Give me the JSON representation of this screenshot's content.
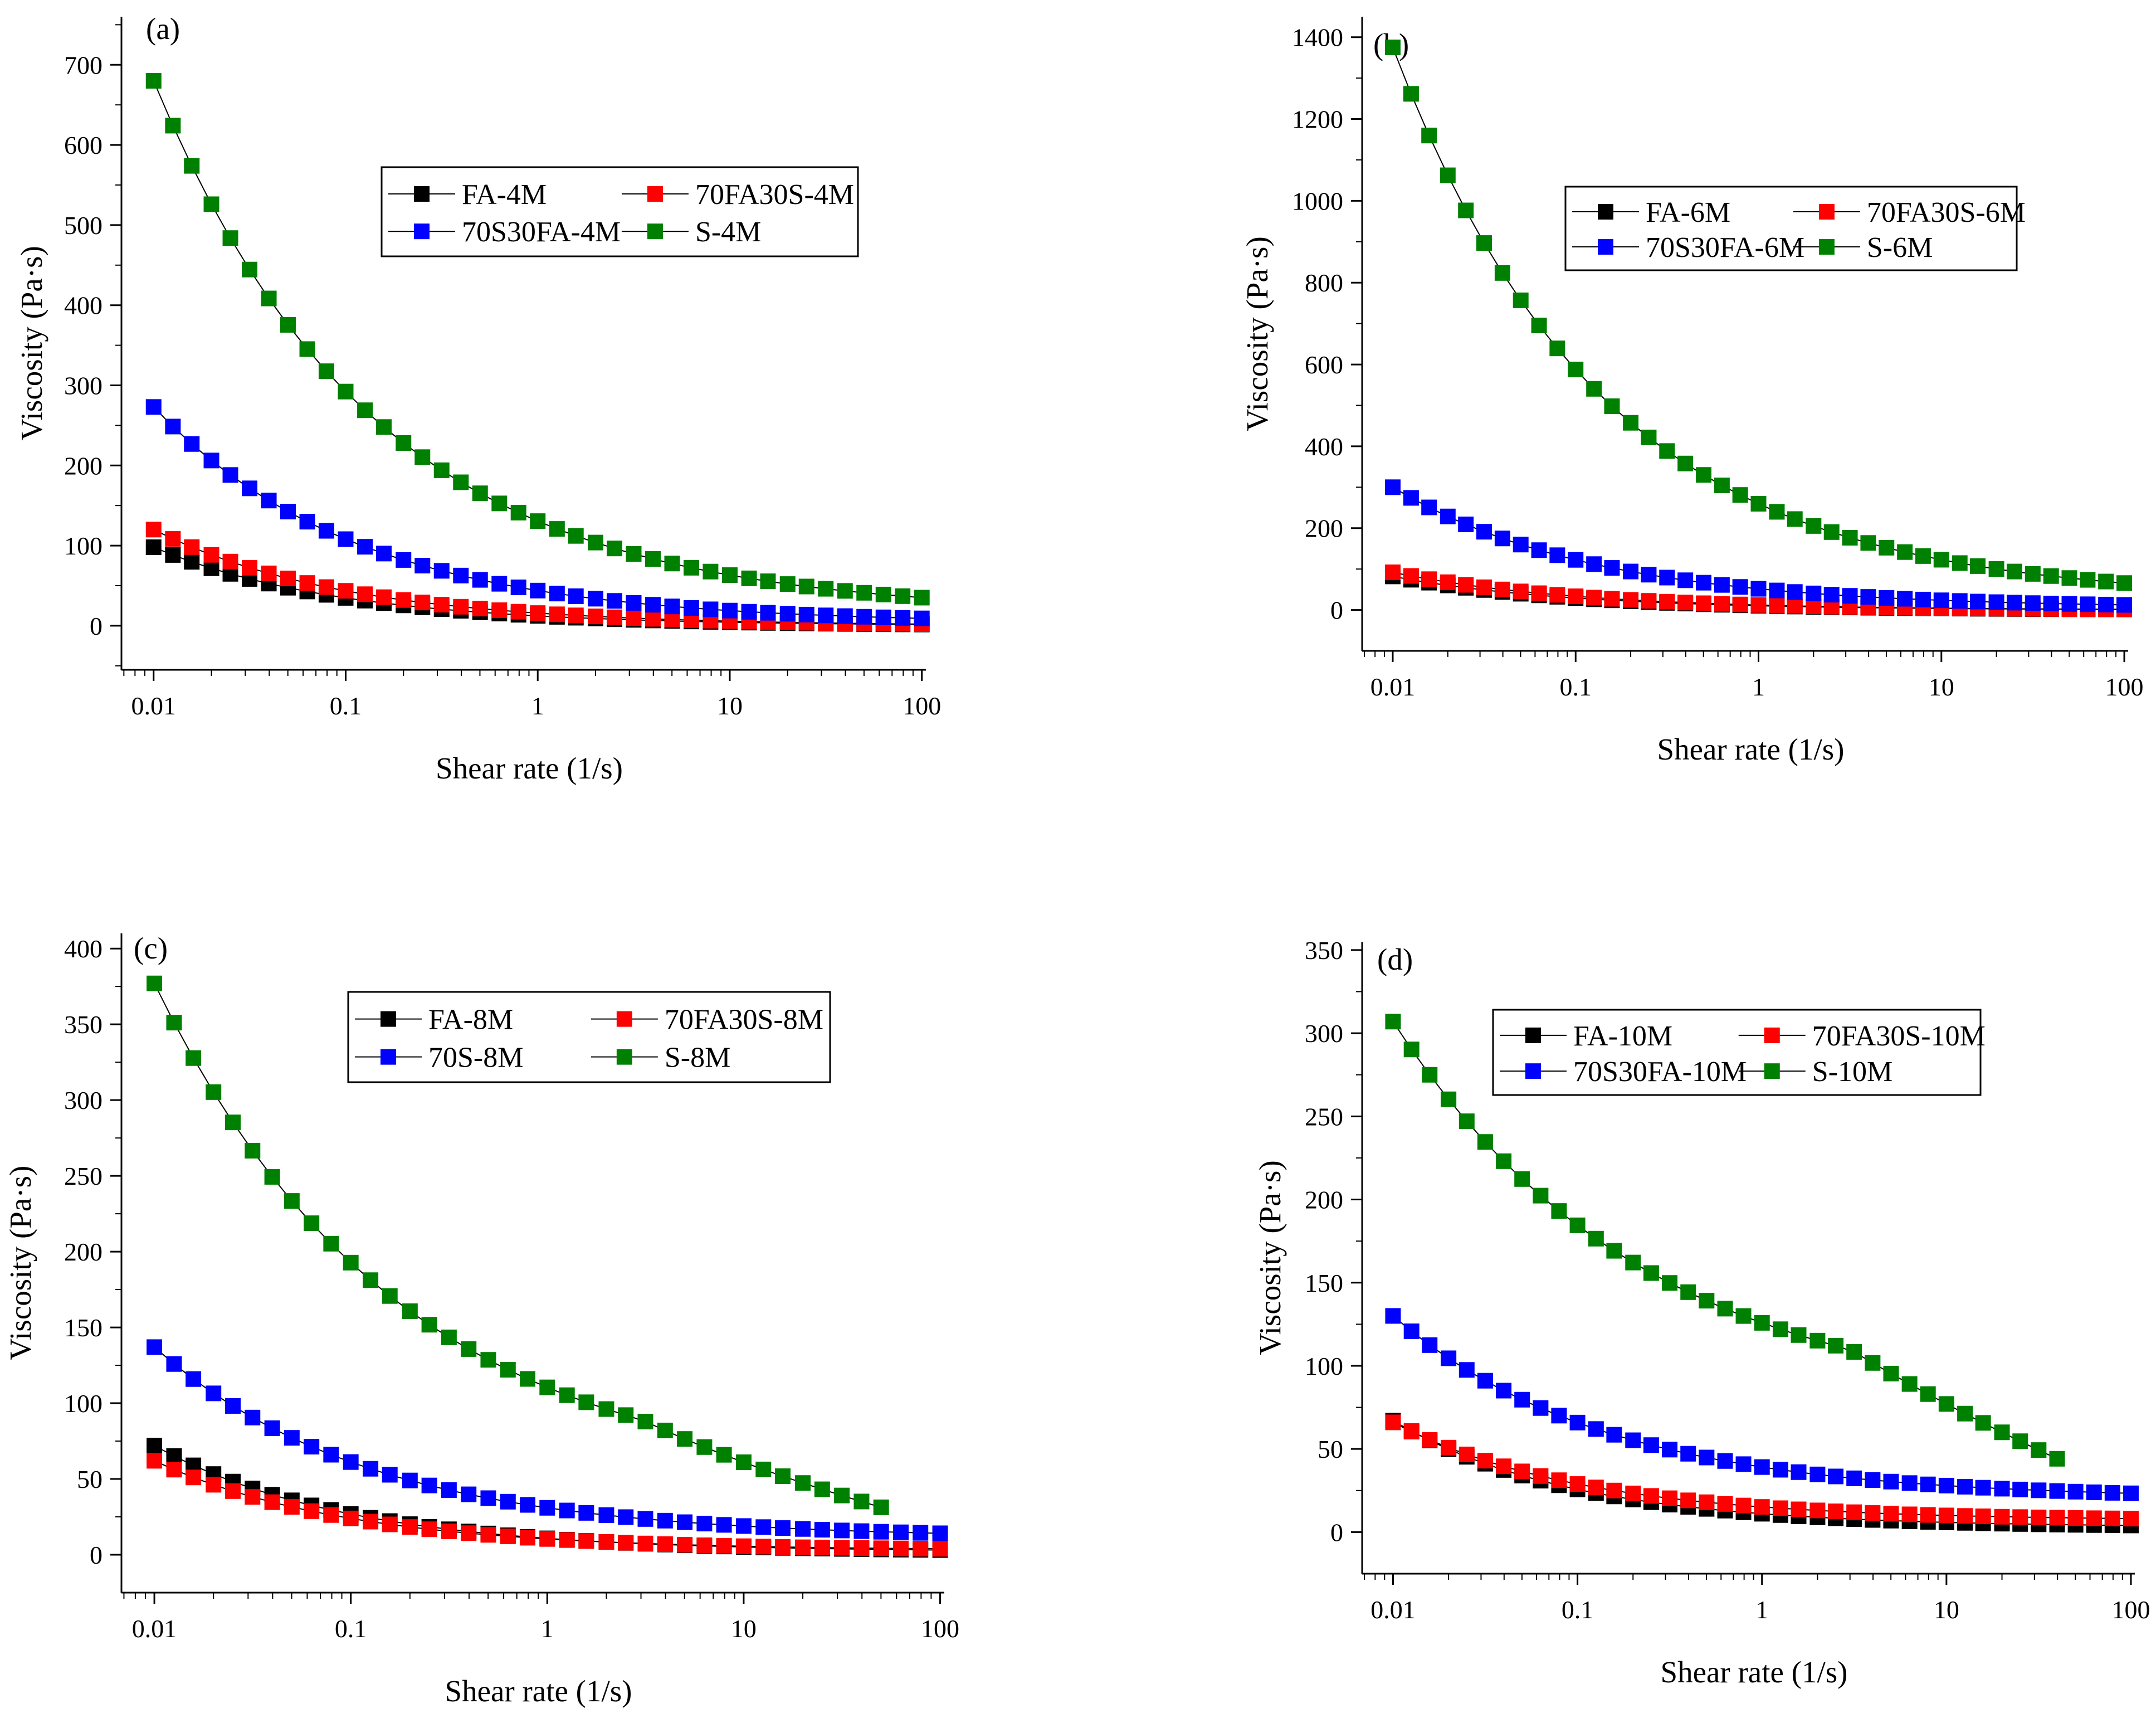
{
  "colors": {
    "black": "#000000",
    "red": "#ff0000",
    "blue": "#0000ff",
    "green": "#008000"
  },
  "chart_data": [
    {
      "panel": "(a)",
      "type": "scatter",
      "xscale": "log",
      "xlabel": "Shear rate (1/s)",
      "ylabel": "Viscosity (Pa·s)",
      "xlim": [
        0.0068,
        105
      ],
      "ylim": [
        -55,
        760
      ],
      "xticks": [
        0.01,
        0.1,
        1,
        10,
        100
      ],
      "xtick_labels": [
        "0.01",
        "0.1",
        "1",
        "10",
        "100"
      ],
      "yticks": [
        0,
        100,
        200,
        300,
        400,
        500,
        600,
        700
      ],
      "ytick_labels": [
        "0",
        "100",
        "200",
        "300",
        "400",
        "500",
        "600",
        "700"
      ],
      "legend_position": "top-center",
      "x": [
        0.01,
        0.0126,
        0.0158,
        0.02,
        0.0251,
        0.0316,
        0.0398,
        0.0501,
        0.0631,
        0.0794,
        0.1,
        0.126,
        0.158,
        0.2,
        0.251,
        0.316,
        0.398,
        0.501,
        0.631,
        0.794,
        1,
        1.26,
        1.58,
        2,
        2.51,
        3.16,
        3.98,
        5.01,
        6.31,
        7.94,
        10,
        12.6,
        15.8,
        20,
        25.1,
        31.6,
        39.8,
        50.1,
        63.1,
        79.4,
        100
      ],
      "series": [
        {
          "name": "FA-4M",
          "color": "#000000",
          "y0": 98,
          "tau": 0.45,
          "yinf": 0
        },
        {
          "name": "70FA30S-4M",
          "color": "#ff0000",
          "y0": 120,
          "tau": 0.44,
          "yinf": 0
        },
        {
          "name": "70S30FA-4M",
          "color": "#0000ff",
          "y0": 273,
          "tau": 0.41,
          "yinf": 3
        },
        {
          "name": "S-4M",
          "color": "#008000",
          "y0": 680,
          "tau": 0.38,
          "yinf": 15
        }
      ]
    },
    {
      "panel": "(b)",
      "type": "scatter",
      "xscale": "log",
      "xlabel": "Shear rate (1/s)",
      "ylabel": "Viscosity (Pa·s)",
      "xlim": [
        0.0068,
        105
      ],
      "ylim": [
        -100,
        1450
      ],
      "xticks": [
        0.01,
        0.1,
        1,
        10,
        100
      ],
      "xtick_labels": [
        "0.01",
        "0.1",
        "1",
        "10",
        "100"
      ],
      "yticks": [
        0,
        200,
        400,
        600,
        800,
        1000,
        1200,
        1400
      ],
      "ytick_labels": [
        "0",
        "200",
        "400",
        "600",
        "800",
        "1000",
        "1200",
        "1400"
      ],
      "legend_position": "top-right",
      "x": [
        0.01,
        0.0126,
        0.0158,
        0.02,
        0.0251,
        0.0316,
        0.0398,
        0.0501,
        0.0631,
        0.0794,
        0.1,
        0.126,
        0.158,
        0.2,
        0.251,
        0.316,
        0.398,
        0.501,
        0.631,
        0.794,
        1,
        1.26,
        1.58,
        2,
        2.51,
        3.16,
        3.98,
        5.01,
        6.31,
        7.94,
        10,
        12.6,
        15.8,
        20,
        25.1,
        31.6,
        39.8,
        50.1,
        63.1,
        79.4,
        100
      ],
      "series": [
        {
          "name": "FA-6M",
          "color": "#000000",
          "y0": 82,
          "tau": 0.45,
          "yinf": 0
        },
        {
          "name": "70FA30S-6M",
          "color": "#ff0000",
          "y0": 92,
          "tau": 0.44,
          "yinf": 0
        },
        {
          "name": "70S30FA-6M",
          "color": "#0000ff",
          "y0": 300,
          "tau": 0.4,
          "yinf": 5
        },
        {
          "name": "S-6M",
          "color": "#008000",
          "y0": 1375,
          "tau": 0.38,
          "yinf": 25
        }
      ]
    },
    {
      "panel": "(c)",
      "type": "scatter",
      "xscale": "log",
      "xlabel": "Shear rate (1/s)",
      "ylabel": "Viscosity (Pa·s)",
      "xlim": [
        0.0068,
        105
      ],
      "ylim": [
        -25,
        410
      ],
      "xticks": [
        0.01,
        0.1,
        1,
        10,
        100
      ],
      "xtick_labels": [
        "0.01",
        "0.1",
        "1",
        "10",
        "100"
      ],
      "yticks": [
        0,
        50,
        100,
        150,
        200,
        250,
        300,
        350,
        400
      ],
      "ytick_labels": [
        "0",
        "50",
        "100",
        "150",
        "200",
        "250",
        "300",
        "350",
        "400"
      ],
      "legend_position": "top-center",
      "x": [
        0.01,
        0.0126,
        0.0158,
        0.02,
        0.0251,
        0.0316,
        0.0398,
        0.0501,
        0.0631,
        0.0794,
        0.1,
        0.126,
        0.158,
        0.2,
        0.251,
        0.316,
        0.398,
        0.501,
        0.631,
        0.794,
        1,
        1.26,
        1.58,
        2,
        2.51,
        3.16,
        3.98,
        5.01,
        6.31,
        7.94,
        10,
        12.6,
        15.8,
        20,
        25.1,
        31.6,
        39.8,
        50.1,
        63.1,
        79.4,
        100
      ],
      "series": [
        {
          "name": "FA-8M",
          "color": "#000000",
          "y0": 72,
          "tau": 0.45,
          "yinf": 2,
          "xmax": 100
        },
        {
          "name": "70FA30S-8M",
          "color": "#ff0000",
          "y0": 62,
          "tau": 0.45,
          "yinf": 3,
          "xmax": 100
        },
        {
          "name": "70S-8M",
          "color": "#0000ff",
          "y0": 137,
          "tau": 0.4,
          "yinf": 11,
          "xmax": 100
        },
        {
          "name": "S-8M",
          "color": "#008000",
          "y0": 377,
          "tau": 0.35,
          "yinf": 44,
          "xmax": 56,
          "tail": true
        }
      ]
    },
    {
      "panel": "(d)",
      "type": "scatter",
      "xscale": "log",
      "xlabel": "Shear rate (1/s)",
      "ylabel": "Viscosity (Pa·s)",
      "xlim": [
        0.0068,
        105
      ],
      "ylim": [
        -25,
        355
      ],
      "xticks": [
        0.01,
        0.1,
        1,
        10,
        100
      ],
      "xtick_labels": [
        "0.01",
        "0.1",
        "1",
        "10",
        "100"
      ],
      "yticks": [
        0,
        50,
        100,
        150,
        200,
        250,
        300,
        350
      ],
      "ytick_labels": [
        "0",
        "50",
        "100",
        "150",
        "200",
        "250",
        "300",
        "350"
      ],
      "legend_position": "top-center",
      "x": [
        0.01,
        0.0126,
        0.0158,
        0.02,
        0.0251,
        0.0316,
        0.0398,
        0.0501,
        0.0631,
        0.0794,
        0.1,
        0.126,
        0.158,
        0.2,
        0.251,
        0.316,
        0.398,
        0.501,
        0.631,
        0.794,
        1,
        1.26,
        1.58,
        2,
        2.51,
        3.16,
        3.98,
        5.01,
        6.31,
        7.94,
        10,
        12.6,
        15.8,
        20,
        25.1,
        31.6,
        39.8,
        50.1,
        63.1,
        79.4,
        100
      ],
      "series": [
        {
          "name": "FA-10M",
          "color": "#000000",
          "y0": 67,
          "tau": 0.45,
          "yinf": 3,
          "xmax": 100
        },
        {
          "name": "70FA30S-10M",
          "color": "#ff0000",
          "y0": 66,
          "tau": 0.43,
          "yinf": 7,
          "xmax": 100
        },
        {
          "name": "70S30FA-10M",
          "color": "#0000ff",
          "y0": 130,
          "tau": 0.38,
          "yinf": 20,
          "xmax": 100
        },
        {
          "name": "S-10M",
          "color": "#008000",
          "y0": 307,
          "tau": 0.32,
          "yinf": 72,
          "xmax": 46,
          "tail": true
        }
      ]
    }
  ]
}
